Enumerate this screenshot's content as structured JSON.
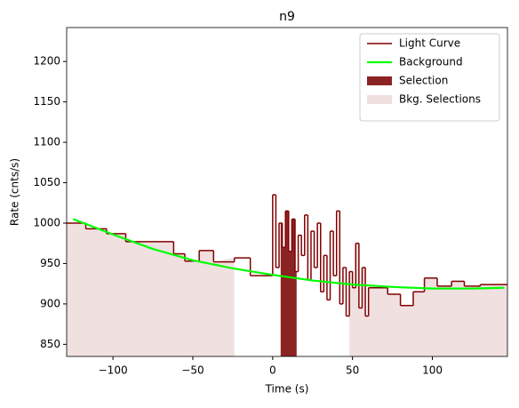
{
  "chart_data": {
    "type": "line",
    "title": "n9",
    "x_label": "Time (s)",
    "y_label": "Rate (cnts/s)",
    "xlim": [
      -129,
      147
    ],
    "ylim": [
      835,
      1242
    ],
    "xticks": [
      {
        "value": -100,
        "label": "−100"
      },
      {
        "value": -50,
        "label": "−50"
      },
      0,
      50,
      100
    ],
    "yticks": [
      850,
      900,
      950,
      1000,
      1050,
      1100,
      1150,
      1200
    ],
    "legend": "upper right",
    "series": [
      {
        "name": "Light Curve",
        "color": "#800000",
        "step": true,
        "x": [
          -129,
          -117,
          -104,
          -92,
          -62,
          -55,
          -46,
          -37,
          -24,
          -14,
          0,
          2,
          4,
          6,
          8,
          10,
          12,
          14,
          16,
          18,
          20,
          22,
          24,
          26,
          28,
          30,
          32,
          34,
          36,
          38,
          40,
          42,
          44,
          46,
          48,
          50,
          52,
          54,
          56,
          58,
          60,
          72,
          80,
          88,
          95,
          103,
          112,
          120,
          130
        ],
        "values": [
          1000,
          993,
          987,
          977,
          962,
          953,
          966,
          952,
          957,
          935,
          1035,
          945,
          1000,
          970,
          1015,
          965,
          1005,
          940,
          985,
          960,
          1010,
          930,
          990,
          945,
          1000,
          915,
          960,
          905,
          990,
          935,
          1015,
          900,
          945,
          885,
          940,
          920,
          975,
          895,
          945,
          885,
          920,
          912,
          898,
          915,
          932,
          922,
          928,
          922,
          924
        ]
      },
      {
        "name": "Background",
        "color": "#00ff00",
        "x": [
          -125,
          -100,
          -75,
          -50,
          -25,
          0,
          25,
          50,
          75,
          100,
          125,
          145
        ],
        "values": [
          1005,
          986,
          968,
          954,
          944,
          936,
          929,
          924,
          921,
          919,
          919,
          920
        ]
      }
    ],
    "selections": [
      {
        "name": "Selection",
        "color": "#8b2323",
        "ranges": [
          [
            5,
            15
          ]
        ]
      },
      {
        "name": "Bkg. Selections",
        "color": "#f0e0e0",
        "ranges": [
          [
            -129,
            -24
          ],
          [
            48,
            147
          ]
        ]
      }
    ]
  }
}
